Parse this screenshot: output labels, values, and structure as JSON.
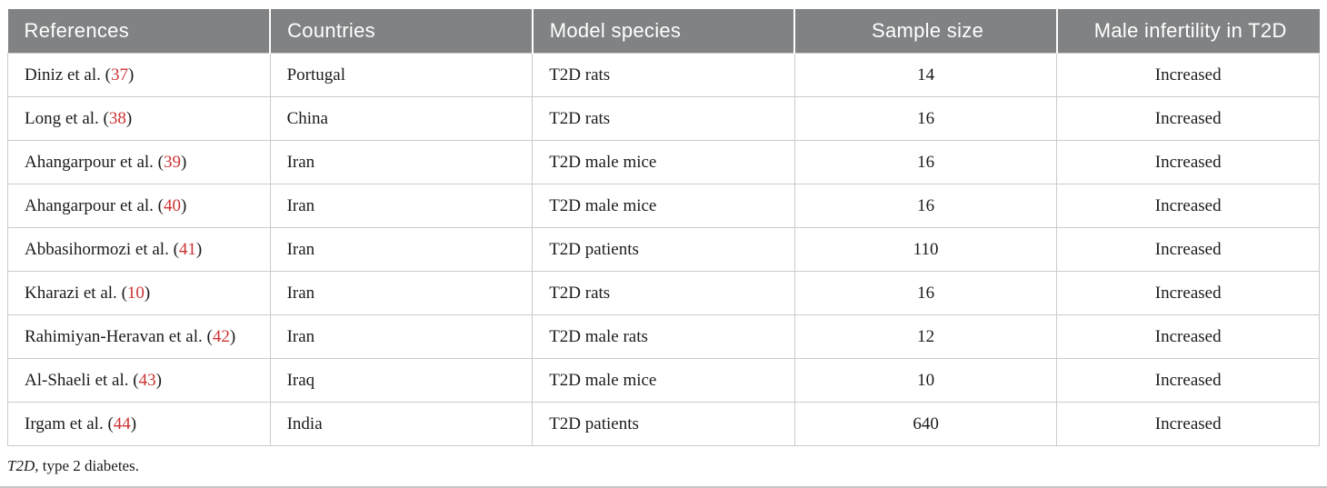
{
  "colors": {
    "header_bg": "#808284",
    "header_text": "#ffffff",
    "body_text": "#1b1b1b",
    "cell_border": "#cccccc",
    "reference_number_red": "#cc3333",
    "bottom_rule_gray": "#c2c5c7"
  },
  "table": {
    "columns": [
      {
        "label": "References",
        "align": "left"
      },
      {
        "label": "Countries",
        "align": "left"
      },
      {
        "label": "Model species",
        "align": "left"
      },
      {
        "label": "Sample size",
        "align": "center"
      },
      {
        "label": "Male infertility in T2D",
        "align": "center"
      }
    ],
    "ref_format": {
      "open": " (",
      "close": ")"
    },
    "rows": [
      {
        "ref_label": "Diniz et al.",
        "ref_number": "37",
        "country": "Portugal",
        "species": "T2D rats",
        "sample": "14",
        "outcome": "Increased"
      },
      {
        "ref_label": "Long et al.",
        "ref_number": "38",
        "country": "China",
        "species": "T2D rats",
        "sample": "16",
        "outcome": "Increased"
      },
      {
        "ref_label": "Ahangarpour et al.",
        "ref_number": "39",
        "country": "Iran",
        "species": "T2D male mice",
        "sample": "16",
        "outcome": "Increased"
      },
      {
        "ref_label": "Ahangarpour et al.",
        "ref_number": "40",
        "country": "Iran",
        "species": "T2D male mice",
        "sample": "16",
        "outcome": "Increased"
      },
      {
        "ref_label": "Abbasihormozi et al.",
        "ref_number": "41",
        "country": "Iran",
        "species": "T2D patients",
        "sample": "110",
        "outcome": "Increased"
      },
      {
        "ref_label": "Kharazi et al.",
        "ref_number": "10",
        "country": "Iran",
        "species": "T2D rats",
        "sample": "16",
        "outcome": "Increased"
      },
      {
        "ref_label": "Rahimiyan-Heravan et al.",
        "ref_number": "42",
        "country": "Iran",
        "species": "T2D male rats",
        "sample": "12",
        "outcome": "Increased"
      },
      {
        "ref_label": "Al-Shaeli et al.",
        "ref_number": "43",
        "country": "Iraq",
        "species": "T2D male mice",
        "sample": "10",
        "outcome": "Increased"
      },
      {
        "ref_label": "Irgam et al.",
        "ref_number": "44",
        "country": "India",
        "species": "T2D patients",
        "sample": "640",
        "outcome": "Increased"
      }
    ]
  },
  "footnote": {
    "abbr": "T2D",
    "rest": ", type 2 diabetes."
  }
}
